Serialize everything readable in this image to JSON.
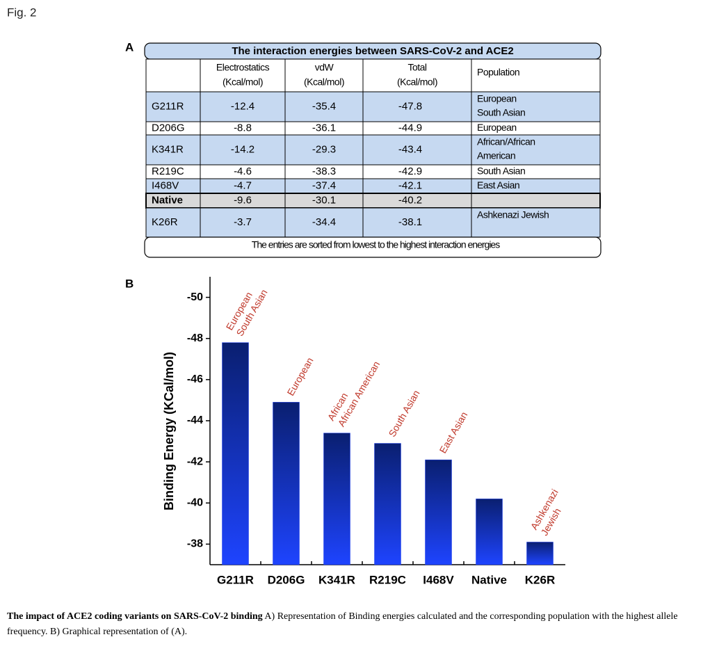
{
  "fig_label": "Fig. 2",
  "table": {
    "label": "A",
    "title": "The interaction energies between SARS-CoV-2 and ACE2",
    "header": [
      null,
      [
        "Electrostatics",
        "(Kcal/mol)"
      ],
      [
        "vdW",
        "(Kcal/mol)"
      ],
      [
        "Total",
        "(Kcal/mol)"
      ],
      [
        "Population"
      ]
    ],
    "rows": [
      [
        "G211R",
        "-12.4",
        "-35.4",
        "-47.8",
        [
          "European",
          "South Asian"
        ]
      ],
      [
        "D206G",
        "-8.8",
        "-36.1",
        "-44.9",
        [
          "European"
        ]
      ],
      [
        "K341R",
        "-14.2",
        "-29.3",
        "-43.4",
        [
          "African/African",
          "American"
        ]
      ],
      [
        "R219C",
        "-4.6",
        "-38.3",
        "-42.9",
        [
          "South Asian"
        ]
      ],
      [
        "I468V",
        "-4.7",
        "-37.4",
        "-42.1",
        [
          "East Asian"
        ]
      ],
      [
        "Native",
        "-9.6",
        "-30.1",
        "-40.2",
        null
      ],
      [
        "K26R",
        "-3.7",
        "-34.4",
        "-38.1",
        [
          "Ashkenazi Jewish"
        ]
      ]
    ],
    "footnote": "The entries are sorted from lowest to the highest interaction energies"
  },
  "chart_data": {
    "type": "bar",
    "label": "B",
    "y_label": "Binding Energy (KCal/mol)",
    "categories": [
      "G211R",
      "D206G",
      "K341R",
      "R219C",
      "I468V",
      "Native",
      "K26R"
    ],
    "values": [
      -47.8,
      -44.9,
      -43.4,
      -42.9,
      -42.1,
      -40.2,
      -38.1
    ],
    "annotations": [
      [
        "European",
        "South Asian"
      ],
      [
        "European"
      ],
      [
        "African",
        "African American"
      ],
      [
        "South Asian"
      ],
      [
        "East Asian"
      ],
      null,
      [
        "Ashkenazi",
        "Jewish"
      ]
    ],
    "color": "#1a3cf0",
    "annotation_color": "#c0392b",
    "ylim": [
      -37,
      -51
    ],
    "yticks": [
      -50,
      -48,
      -46,
      -44,
      -42,
      -40,
      -38
    ]
  },
  "caption": {
    "bold": "The impact of ACE2 coding variants on SARS-CoV-2 binding",
    "text": " A) Representation of Binding energies calculated and the corresponding population with the highest allele frequency. B) Graphical representation of (A)."
  }
}
